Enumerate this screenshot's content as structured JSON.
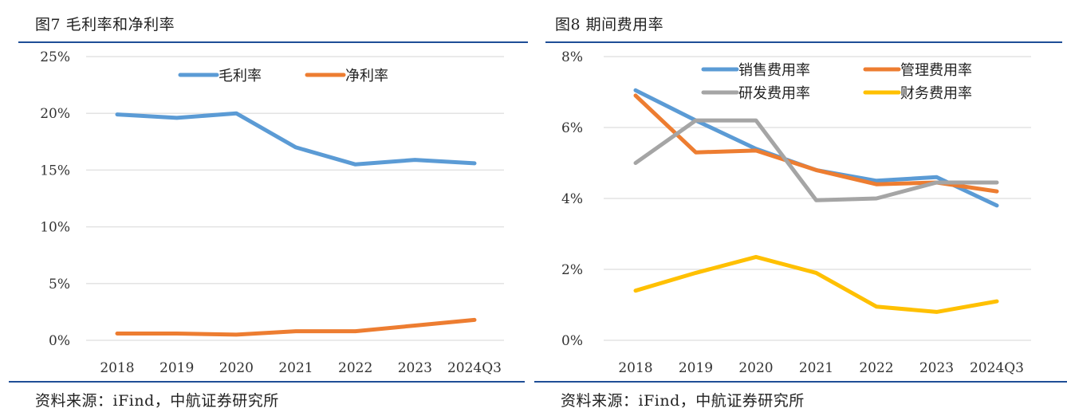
{
  "figures": [
    {
      "title": "图7  毛利率和净利率",
      "source": "资料来源：iFind，中航证券研究所"
    },
    {
      "title": "图8  期间费用率",
      "source": "资料来源：iFind，中航证券研究所"
    }
  ],
  "chart_data": [
    {
      "type": "line",
      "title": "图7  毛利率和净利率",
      "xlabel": "",
      "ylabel": "",
      "categories": [
        "2018",
        "2019",
        "2020",
        "2021",
        "2022",
        "2023",
        "2024Q3"
      ],
      "ylim": [
        0,
        25
      ],
      "yticks": [
        0,
        5,
        10,
        15,
        20,
        25
      ],
      "ytick_labels": [
        "0%",
        "5%",
        "10%",
        "15%",
        "20%",
        "25%"
      ],
      "grid": true,
      "legend_position": "top-center",
      "series": [
        {
          "name": "毛利率",
          "color": "#5b9bd5",
          "values": [
            19.9,
            19.6,
            20.0,
            17.0,
            15.5,
            15.9,
            15.6
          ]
        },
        {
          "name": "净利率",
          "color": "#ed7d31",
          "values": [
            0.6,
            0.6,
            0.5,
            0.8,
            0.8,
            1.3,
            1.8
          ]
        }
      ]
    },
    {
      "type": "line",
      "title": "图8  期间费用率",
      "xlabel": "",
      "ylabel": "",
      "categories": [
        "2018",
        "2019",
        "2020",
        "2021",
        "2022",
        "2023",
        "2024Q3"
      ],
      "ylim": [
        0,
        8
      ],
      "yticks": [
        0,
        2,
        4,
        6,
        8
      ],
      "ytick_labels": [
        "0%",
        "2%",
        "4%",
        "6%",
        "8%"
      ],
      "grid": true,
      "legend_position": "top-right",
      "series": [
        {
          "name": "销售费用率",
          "color": "#5b9bd5",
          "values": [
            7.05,
            6.2,
            5.4,
            4.8,
            4.5,
            4.6,
            3.8
          ]
        },
        {
          "name": "管理费用率",
          "color": "#ed7d31",
          "values": [
            6.9,
            5.3,
            5.35,
            4.8,
            4.4,
            4.45,
            4.2
          ]
        },
        {
          "name": "研发费用率",
          "color": "#a5a5a5",
          "values": [
            5.0,
            6.2,
            6.2,
            3.95,
            4.0,
            4.45,
            4.45
          ]
        },
        {
          "name": "财务费用率",
          "color": "#ffc000",
          "values": [
            1.4,
            1.9,
            2.35,
            1.9,
            0.95,
            0.8,
            1.1
          ]
        }
      ]
    }
  ]
}
